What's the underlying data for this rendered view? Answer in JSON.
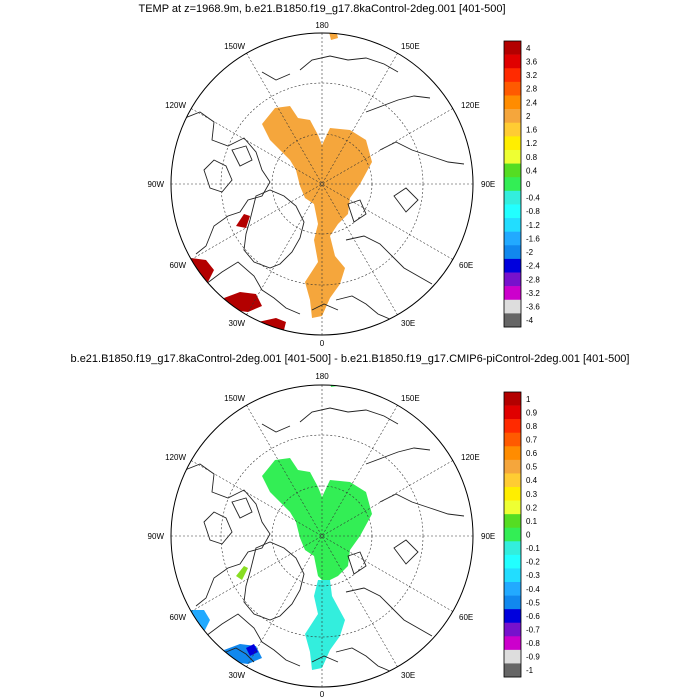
{
  "figure": {
    "panels": [
      {
        "title": "TEMP at z=1968.9m, b.e21.B1850.f19_g17.8kaControl-2deg.001 [401-500]",
        "lon_labels": [
          "180",
          "150E",
          "120E",
          "90E",
          "60E",
          "30E",
          "0",
          "30W",
          "60W",
          "90W",
          "120W",
          "150W"
        ],
        "colorbar": {
          "labels": [
            "4",
            "3.6",
            "3.2",
            "2.8",
            "2.4",
            "2",
            "1.6",
            "1.2",
            "0.8",
            "0.4",
            "0",
            "-0.4",
            "-0.8",
            "-1.2",
            "-1.6",
            "-2",
            "-2.4",
            "-2.8",
            "-3.2",
            "-3.6",
            "-4"
          ]
        },
        "fields": [
          {
            "region": "central-arctic-ridge",
            "value": 2.2,
            "color": "#f5a63c"
          },
          {
            "region": "baffin-bay-patch",
            "value": 4.0,
            "color": "#b30000"
          },
          {
            "region": "labrador-sea-patch",
            "value": 4.0,
            "color": "#b30000"
          },
          {
            "region": "irminger-sea-patch",
            "value": 4.0,
            "color": "#b30000"
          },
          {
            "region": "greenland-sea-patch",
            "value": 4.0,
            "color": "#b30000"
          },
          {
            "region": "bering-strait-patch",
            "value": 2.2,
            "color": "#f5a63c"
          }
        ]
      },
      {
        "title": "b.e21.B1850.f19_g17.8kaControl-2deg.001 [401-500] - b.e21.B1850.f19_g17.CMIP6-piControl-2deg.001 [401-500]",
        "lon_labels": [
          "180",
          "150E",
          "120E",
          "90E",
          "60E",
          "30E",
          "0",
          "30W",
          "60W",
          "90W",
          "120W",
          "150W"
        ],
        "colorbar": {
          "labels": [
            "1",
            "0.9",
            "0.8",
            "0.7",
            "0.6",
            "0.5",
            "0.4",
            "0.3",
            "0.2",
            "0.1",
            "0",
            "-0.1",
            "-0.2",
            "-0.3",
            "-0.4",
            "-0.5",
            "-0.6",
            "-0.7",
            "-0.8",
            "-0.9",
            "-1"
          ]
        },
        "fields": [
          {
            "region": "central-arctic-ridge",
            "value": 0.15,
            "color": "#33ee55"
          },
          {
            "region": "eurasian-basin",
            "value": -0.05,
            "color": "#33eedd"
          },
          {
            "region": "baffin-bay-patch",
            "value": 0.25,
            "color": "#88dd22"
          },
          {
            "region": "labrador-sea-patch",
            "value": -0.35,
            "color": "#22aaff"
          },
          {
            "region": "irminger-sea-patch",
            "value": -0.45,
            "color": "#1188ee"
          },
          {
            "region": "bering-strait-patch",
            "value": 0.15,
            "color": "#33ee55"
          }
        ]
      }
    ],
    "colorbar_colors": [
      "#b30000",
      "#e00000",
      "#ff2a00",
      "#ff5a00",
      "#ff8c00",
      "#f5a63c",
      "#ffcc33",
      "#ffee00",
      "#eeff33",
      "#55dd22",
      "#33ee55",
      "#33eedd",
      "#22ffff",
      "#22ddff",
      "#22aaff",
      "#1188ee",
      "#0000dd",
      "#7711cc",
      "#cc00cc",
      "#dddddd",
      "#666666"
    ]
  }
}
